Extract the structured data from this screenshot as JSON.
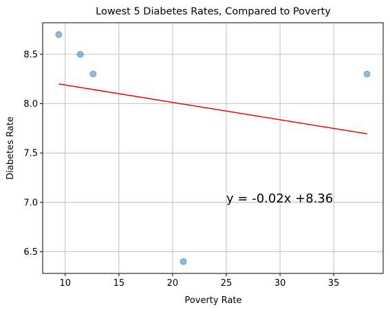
{
  "chart_data": {
    "type": "scatter",
    "title": "Lowest 5 Diabetes Rates, Compared to Poverty",
    "xlabel": "Poverty Rate",
    "ylabel": "Diabetes Rate",
    "xlim": [
      7.9,
      39.6
    ],
    "ylim": [
      6.28,
      8.82
    ],
    "x_ticks": [
      10,
      15,
      20,
      25,
      30,
      35
    ],
    "y_ticks": [
      6.5,
      7.0,
      7.5,
      8.0,
      8.5
    ],
    "x_tick_labels": [
      "10",
      "15",
      "20",
      "25",
      "30",
      "35"
    ],
    "y_tick_labels": [
      "6.5",
      "7.0",
      "7.5",
      "8.0",
      "8.5"
    ],
    "grid": true,
    "points": [
      {
        "x": 9.4,
        "y": 8.7
      },
      {
        "x": 11.4,
        "y": 8.5
      },
      {
        "x": 12.6,
        "y": 8.3
      },
      {
        "x": 21.0,
        "y": 6.4
      },
      {
        "x": 38.1,
        "y": 8.3
      }
    ],
    "regression": {
      "x": [
        9.4,
        38.1
      ],
      "y": [
        8.2,
        7.695
      ],
      "color": "#ff0000",
      "annotation": "y = -0.02x +8.36",
      "annotation_x": 25.0,
      "annotation_y": 7.0
    },
    "point_color": "#1f77b4"
  }
}
